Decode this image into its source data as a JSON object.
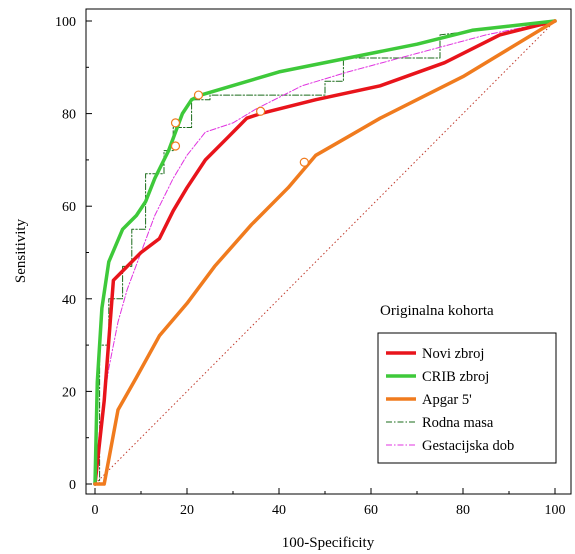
{
  "chart_data": {
    "type": "line",
    "caption": "Originalna kohorta",
    "xlabel": "100-Specificity",
    "ylabel": "Sensitivity",
    "xlim": [
      0,
      100
    ],
    "ylim": [
      0,
      100
    ],
    "x_ticks": [
      "0",
      "20",
      "40",
      "60",
      "80",
      "100"
    ],
    "y_ticks": [
      "0",
      "20",
      "40",
      "60",
      "80",
      "100"
    ],
    "grid": false,
    "legend_position": "bottom-right",
    "reference_line": {
      "x": [
        0,
        100
      ],
      "y": [
        0,
        100
      ],
      "color": "#c0392b",
      "style": "dotted"
    },
    "series": [
      {
        "name": "Novi zbroj",
        "color": "#e8141b",
        "style": "solid-thick",
        "x": [
          0,
          2,
          4,
          7,
          10,
          14,
          17,
          20,
          24,
          29,
          33,
          36,
          48,
          62,
          76,
          88,
          100
        ],
        "y": [
          0,
          18,
          44,
          47,
          50,
          53,
          59,
          64,
          70,
          75,
          79,
          80,
          83,
          86,
          91,
          97,
          100
        ],
        "markers": [
          {
            "x": 36,
            "y": 80.5
          }
        ]
      },
      {
        "name": "CRIB zbroj",
        "color": "#3ec93a",
        "style": "solid-thick",
        "x": [
          0,
          0.5,
          1.5,
          3,
          6,
          9,
          11,
          13,
          16,
          19,
          21,
          23,
          40,
          55,
          70,
          82,
          100
        ],
        "y": [
          0,
          22,
          38,
          48,
          55,
          58,
          61,
          66,
          72,
          80,
          83,
          84,
          89,
          92,
          95,
          98,
          100
        ],
        "markers": [
          {
            "x": 22.5,
            "y": 84
          },
          {
            "x": 17.5,
            "y": 78
          }
        ]
      },
      {
        "name": "Apgar 5'",
        "color": "#f07b1e",
        "style": "solid-thick",
        "x": [
          0,
          2,
          5,
          9,
          14,
          20,
          26,
          34,
          42,
          48,
          55,
          62,
          70,
          80,
          90,
          100
        ],
        "y": [
          0,
          0,
          16,
          23,
          32,
          39,
          47,
          56,
          64,
          71,
          75,
          79,
          83,
          88,
          94,
          100
        ],
        "markers": [
          {
            "x": 45.5,
            "y": 69.5
          }
        ]
      },
      {
        "name": "Rodna masa",
        "color": "#1a6b1a",
        "style": "dash-dot",
        "x": [
          0,
          1,
          1,
          3,
          3,
          6,
          6,
          8,
          8,
          11,
          11,
          15,
          15,
          17,
          17,
          21,
          21,
          25,
          25,
          50,
          50,
          54,
          54,
          75,
          75,
          100
        ],
        "y": [
          0,
          0,
          30,
          30,
          40,
          40,
          47,
          47,
          55,
          55,
          67,
          67,
          72,
          72,
          77,
          77,
          83,
          83,
          84,
          84,
          87,
          87,
          92,
          92,
          97,
          100
        ],
        "markers": []
      },
      {
        "name": "Gestacijska dob",
        "color": "#e033e0",
        "style": "dash-dot",
        "x": [
          0,
          1,
          3,
          5,
          7,
          10,
          13,
          17,
          20,
          24,
          30,
          35,
          45,
          55,
          70,
          85,
          100
        ],
        "y": [
          0,
          12,
          25,
          35,
          42,
          50,
          58,
          66,
          71,
          76,
          78,
          81,
          86,
          89,
          93,
          97,
          100
        ],
        "markers": [
          {
            "x": 17.5,
            "y": 73
          }
        ]
      }
    ]
  }
}
